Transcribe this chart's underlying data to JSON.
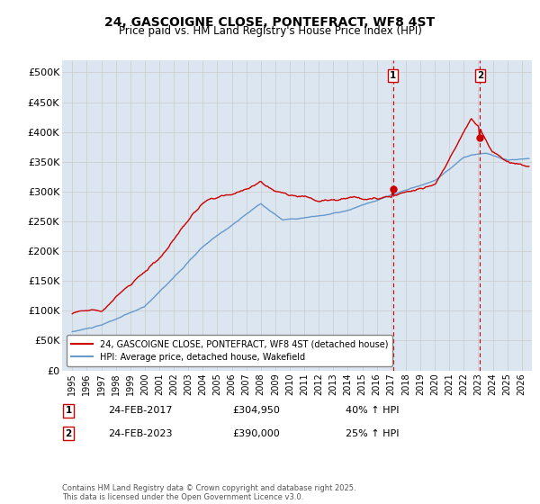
{
  "title": "24, GASCOIGNE CLOSE, PONTEFRACT, WF8 4ST",
  "subtitle": "Price paid vs. HM Land Registry's House Price Index (HPI)",
  "legend_line1": "24, GASCOIGNE CLOSE, PONTEFRACT, WF8 4ST (detached house)",
  "legend_line2": "HPI: Average price, detached house, Wakefield",
  "label1_date": "24-FEB-2017",
  "label1_price": "£304,950",
  "label1_hpi": "40% ↑ HPI",
  "label2_date": "24-FEB-2023",
  "label2_price": "£390,000",
  "label2_hpi": "25% ↑ HPI",
  "footnote": "Contains HM Land Registry data © Crown copyright and database right 2025.\nThis data is licensed under the Open Government Licence v3.0.",
  "red_color": "#cc0000",
  "blue_color": "#6699cc",
  "grid_color": "#cccccc",
  "background_color": "#dce6f0",
  "ylim": [
    0,
    520000
  ],
  "yticks": [
    0,
    50000,
    100000,
    150000,
    200000,
    250000,
    300000,
    350000,
    400000,
    450000,
    500000
  ],
  "marker1_x": 2017.12,
  "marker1_y": 304950,
  "marker2_x": 2023.12,
  "marker2_y": 390000,
  "vline1_x": 2017.12,
  "vline2_x": 2023.12,
  "xlim_start": 1994.3,
  "xlim_end": 2026.7
}
